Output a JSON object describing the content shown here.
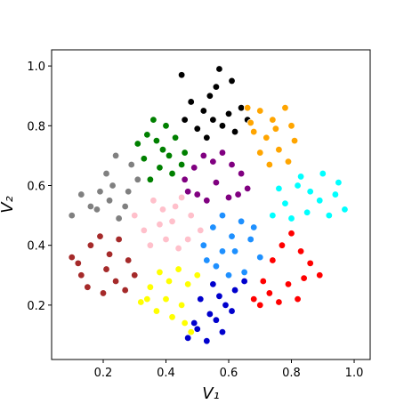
{
  "chart_data": {
    "type": "scatter",
    "xlabel": "V₁",
    "ylabel": "V₂",
    "xlim": [
      0.0355,
      1.051
    ],
    "ylim": [
      0.018,
      1.054
    ],
    "xticks": [
      0.2,
      0.4,
      0.6,
      0.8,
      {
        "value": 1,
        "label": "1.0"
      }
    ],
    "yticks": [
      0.2,
      0.4,
      0.6,
      0.8,
      {
        "value": 1,
        "label": "1.0"
      }
    ],
    "series": [
      {
        "color": "#000000",
        "x": [
          0.45,
          0.48,
          0.52,
          0.55,
          0.58,
          0.6,
          0.62,
          0.5,
          0.54,
          0.57,
          0.64,
          0.66,
          0.53,
          0.46,
          0.56,
          0.61
        ],
        "y": [
          0.97,
          0.88,
          0.85,
          0.82,
          0.8,
          0.84,
          0.78,
          0.79,
          0.9,
          0.99,
          0.86,
          0.82,
          0.76,
          0.82,
          0.93,
          0.95
        ]
      },
      {
        "color": "#ffa500",
        "x": [
          0.66,
          0.7,
          0.74,
          0.78,
          0.8,
          0.72,
          0.68,
          0.76,
          0.79,
          0.73,
          0.7,
          0.81,
          0.75,
          0.67
        ],
        "y": [
          0.86,
          0.85,
          0.82,
          0.86,
          0.8,
          0.76,
          0.78,
          0.72,
          0.68,
          0.67,
          0.71,
          0.75,
          0.79,
          0.81
        ]
      },
      {
        "color": "#008000",
        "x": [
          0.31,
          0.33,
          0.36,
          0.4,
          0.43,
          0.46,
          0.38,
          0.35,
          0.42,
          0.45,
          0.39,
          0.34,
          0.41,
          0.37
        ],
        "y": [
          0.74,
          0.69,
          0.82,
          0.8,
          0.76,
          0.71,
          0.66,
          0.62,
          0.64,
          0.67,
          0.72,
          0.77,
          0.7,
          0.75
        ]
      },
      {
        "color": "#808080",
        "x": [
          0.1,
          0.13,
          0.16,
          0.19,
          0.22,
          0.25,
          0.28,
          0.31,
          0.21,
          0.24,
          0.18,
          0.27,
          0.23,
          0.29
        ],
        "y": [
          0.5,
          0.57,
          0.53,
          0.58,
          0.55,
          0.49,
          0.58,
          0.62,
          0.64,
          0.7,
          0.52,
          0.53,
          0.6,
          0.67
        ]
      },
      {
        "color": "#800080",
        "x": [
          0.46,
          0.49,
          0.52,
          0.55,
          0.58,
          0.61,
          0.64,
          0.66,
          0.5,
          0.56,
          0.6,
          0.53,
          0.63,
          0.47
        ],
        "y": [
          0.62,
          0.66,
          0.7,
          0.68,
          0.71,
          0.67,
          0.64,
          0.59,
          0.57,
          0.61,
          0.56,
          0.55,
          0.57,
          0.58
        ]
      },
      {
        "color": "#00ffff",
        "x": [
          0.74,
          0.78,
          0.82,
          0.86,
          0.9,
          0.94,
          0.97,
          0.8,
          0.85,
          0.89,
          0.92,
          0.76,
          0.83,
          0.95
        ],
        "y": [
          0.5,
          0.54,
          0.6,
          0.58,
          0.64,
          0.57,
          0.52,
          0.49,
          0.51,
          0.55,
          0.5,
          0.59,
          0.63,
          0.61
        ]
      },
      {
        "color": "#ffc0cb",
        "x": [
          0.3,
          0.33,
          0.36,
          0.39,
          0.42,
          0.45,
          0.48,
          0.51,
          0.35,
          0.4,
          0.44,
          0.38,
          0.47,
          0.43
        ],
        "y": [
          0.5,
          0.45,
          0.55,
          0.52,
          0.48,
          0.56,
          0.5,
          0.45,
          0.4,
          0.42,
          0.39,
          0.47,
          0.42,
          0.53
        ]
      },
      {
        "color": "#a52a2a",
        "x": [
          0.1,
          0.13,
          0.16,
          0.19,
          0.22,
          0.25,
          0.28,
          0.3,
          0.15,
          0.2,
          0.24,
          0.27,
          0.12,
          0.21
        ],
        "y": [
          0.36,
          0.3,
          0.4,
          0.43,
          0.37,
          0.42,
          0.35,
          0.3,
          0.26,
          0.24,
          0.28,
          0.25,
          0.34,
          0.32
        ]
      },
      {
        "color": "#1e90ff",
        "x": [
          0.52,
          0.55,
          0.58,
          0.61,
          0.64,
          0.67,
          0.7,
          0.56,
          0.6,
          0.65,
          0.53,
          0.68,
          0.62,
          0.58
        ],
        "y": [
          0.4,
          0.46,
          0.5,
          0.43,
          0.48,
          0.42,
          0.36,
          0.33,
          0.3,
          0.31,
          0.35,
          0.46,
          0.38,
          0.38
        ]
      },
      {
        "color": "#ff0000",
        "x": [
          0.68,
          0.71,
          0.74,
          0.77,
          0.8,
          0.83,
          0.86,
          0.89,
          0.73,
          0.79,
          0.84,
          0.76,
          0.82,
          0.7
        ],
        "y": [
          0.22,
          0.28,
          0.35,
          0.4,
          0.44,
          0.38,
          0.34,
          0.3,
          0.24,
          0.27,
          0.29,
          0.21,
          0.22,
          0.2
        ]
      },
      {
        "color": "#ffff00",
        "x": [
          0.32,
          0.35,
          0.38,
          0.41,
          0.44,
          0.47,
          0.5,
          0.37,
          0.42,
          0.46,
          0.4,
          0.45,
          0.48,
          0.34
        ],
        "y": [
          0.21,
          0.26,
          0.31,
          0.28,
          0.32,
          0.27,
          0.3,
          0.18,
          0.16,
          0.14,
          0.22,
          0.2,
          0.11,
          0.22
        ]
      },
      {
        "color": "#0000cd",
        "x": [
          0.47,
          0.5,
          0.53,
          0.56,
          0.59,
          0.62,
          0.65,
          0.51,
          0.55,
          0.58,
          0.61,
          0.54,
          0.49,
          0.57
        ],
        "y": [
          0.09,
          0.12,
          0.08,
          0.15,
          0.2,
          0.25,
          0.28,
          0.22,
          0.27,
          0.11,
          0.18,
          0.17,
          0.14,
          0.23
        ]
      }
    ]
  }
}
